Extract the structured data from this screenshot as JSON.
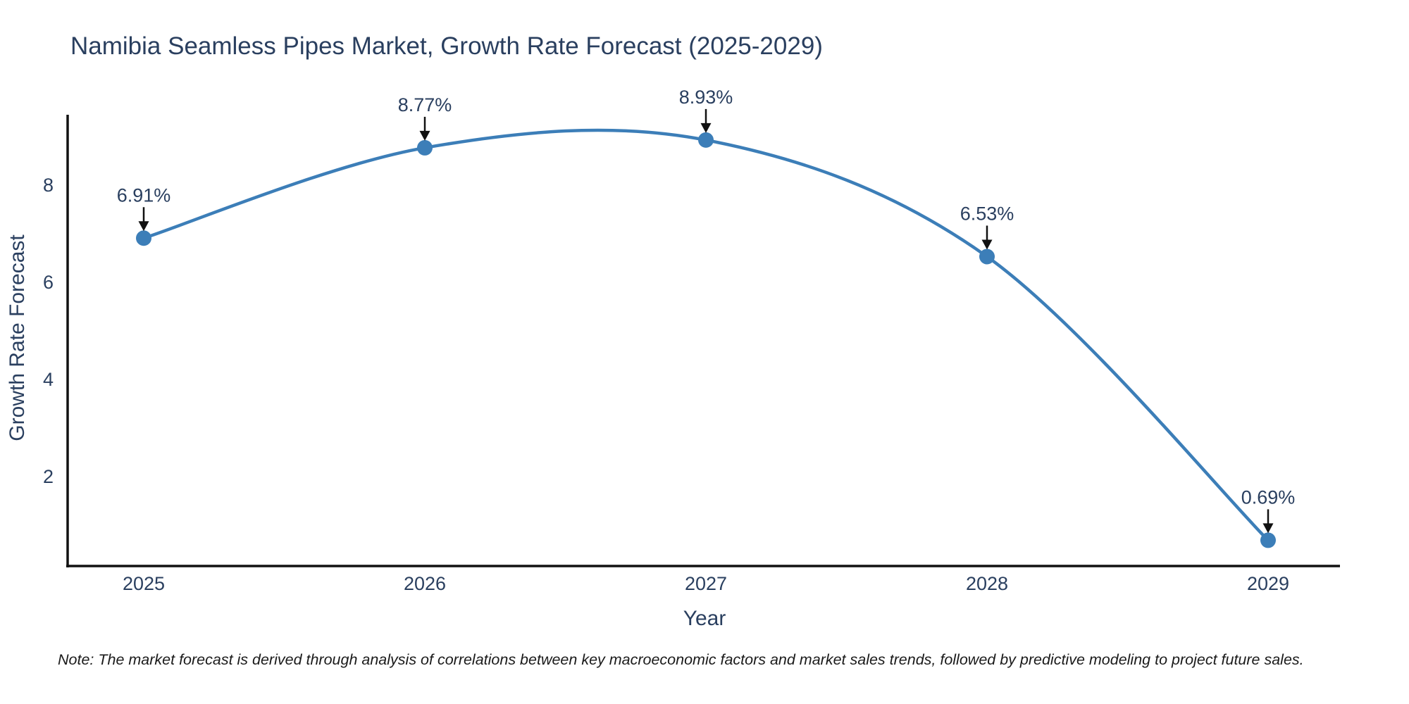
{
  "page": {
    "background": "#ffffff"
  },
  "chart_data": {
    "type": "line",
    "title": "Namibia Seamless Pipes Market, Growth Rate Forecast (2025-2029)",
    "xlabel": "Year",
    "ylabel": "Growth Rate Forecast",
    "categories": [
      "2025",
      "2026",
      "2027",
      "2028",
      "2029"
    ],
    "series": [
      {
        "name": "Growth Rate Forecast",
        "values": [
          6.91,
          8.77,
          8.93,
          6.53,
          0.69
        ],
        "point_labels": [
          "6.91%",
          "8.77%",
          "8.93%",
          "6.53%",
          "0.69%"
        ]
      }
    ],
    "yticks": [
      2,
      4,
      6,
      8
    ],
    "ylim": [
      0.16,
      9.45
    ],
    "grid": false,
    "legend": "none",
    "line_shape": "spline",
    "annotation_style": "arrow-down",
    "colors": {
      "line": "#3c7eb8",
      "marker": "#3c7eb8",
      "axis": "#111111",
      "arrow": "#111111",
      "text": "#2a3f5f",
      "note": "#1a1a1a"
    }
  },
  "footnote": "Note: The market forecast is derived through analysis of correlations between key macroeconomic factors and market sales trends, followed by predictive modeling to project future sales."
}
